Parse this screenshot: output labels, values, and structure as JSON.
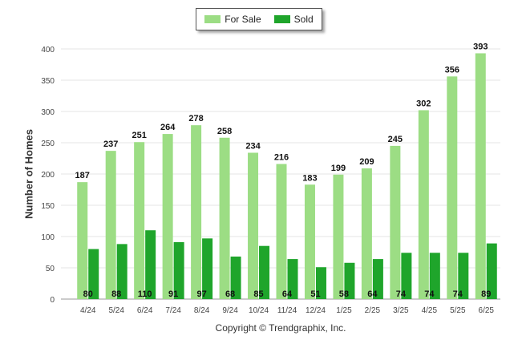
{
  "chart_data": {
    "type": "bar",
    "categories": [
      "4/24",
      "5/24",
      "6/24",
      "7/24",
      "8/24",
      "9/24",
      "10/24",
      "11/24",
      "12/24",
      "1/25",
      "2/25",
      "3/25",
      "4/25",
      "5/25",
      "6/25"
    ],
    "series": [
      {
        "name": "For Sale",
        "color": "#9cdd84",
        "values": [
          187,
          237,
          251,
          264,
          278,
          258,
          234,
          216,
          183,
          199,
          209,
          245,
          302,
          356,
          393
        ]
      },
      {
        "name": "Sold",
        "color": "#1fa52b",
        "values": [
          80,
          88,
          110,
          91,
          97,
          68,
          85,
          64,
          51,
          58,
          64,
          74,
          74,
          74,
          89
        ]
      }
    ],
    "title": "",
    "xlabel": "",
    "ylabel": "Number of Homes",
    "ylim": [
      0,
      400
    ],
    "yticks": [
      0,
      50,
      100,
      150,
      200,
      250,
      300,
      350,
      400
    ],
    "grid": true,
    "legend": "top-center",
    "data_labels": true
  },
  "footer": {
    "copyright": "Copyright © Trendgraphix, Inc."
  }
}
